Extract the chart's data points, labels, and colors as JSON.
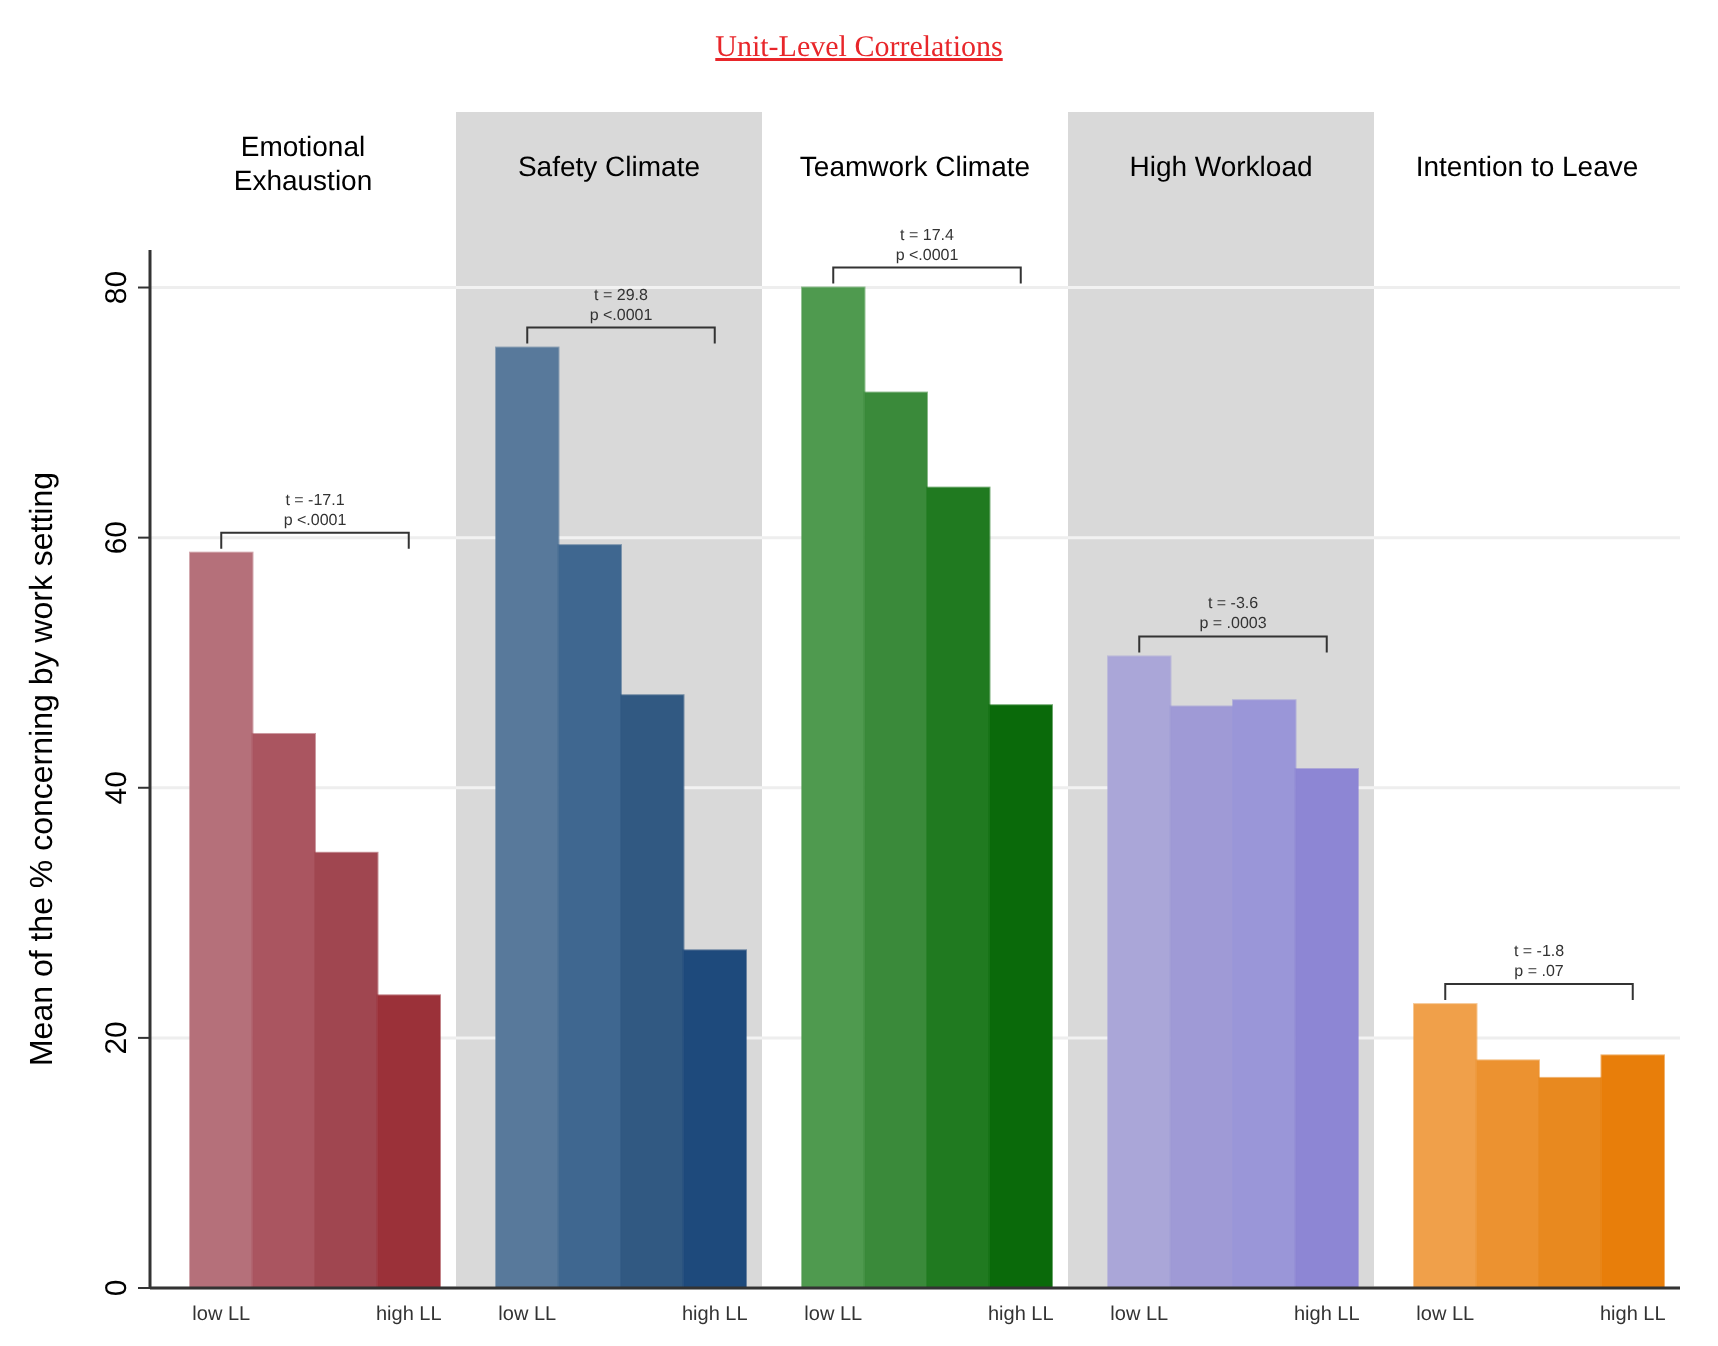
{
  "chart_data": [
    {
      "type": "bar",
      "title": "Emotional Exhaustion",
      "ylabel": "Mean of the % concerning by work setting",
      "categories": [
        "low LL",
        null,
        null,
        "high LL"
      ],
      "values": [
        58.8,
        44.3,
        34.8,
        23.4
      ],
      "colors": [
        "#b5707a",
        "#aa5560",
        "#a04650",
        "#9b3139"
      ],
      "ylim": [
        0,
        83
      ],
      "yticks": [
        0,
        20,
        40,
        60,
        80
      ],
      "grid": "y",
      "annotations": [
        "t = -17.1",
        "p <.0001",
        "Unit-Level Correlations"
      ]
    },
    {
      "type": "bar",
      "title": "Safety Climate",
      "categories": [
        "low LL",
        null,
        null,
        "high LL"
      ],
      "values": [
        75.2,
        59.4,
        47.4,
        27
      ],
      "colors": [
        "#58799b",
        "#3f6790",
        "#315982",
        "#1e4a7c"
      ],
      "ylim": [
        0,
        83
      ],
      "yticks": [
        0,
        20,
        40,
        60,
        80
      ],
      "grid": "y",
      "tick_labels": "x",
      "annotations": [
        "t = 29.8",
        "p <.0001"
      ]
    },
    {
      "type": "bar",
      "title": "Teamwork Climate",
      "categories": [
        "low LL",
        null,
        null,
        "high LL"
      ],
      "values": [
        80,
        71.6,
        64,
        46.6
      ],
      "colors": [
        "#4f9a4f",
        "#3a8a3a",
        "#207a20",
        "#0a6a0a"
      ],
      "ylim": [
        0,
        83
      ],
      "yticks": [
        0,
        20,
        40,
        60,
        80
      ],
      "grid": "y",
      "tick_labels": "x",
      "annotations": [
        "t = 17.4",
        "p <.0001"
      ]
    },
    {
      "type": "bar",
      "title": "High Workload",
      "categories": [
        "low LL",
        null,
        null,
        "high LL"
      ],
      "values": [
        50.5,
        46.5,
        47,
        41.5
      ],
      "colors": [
        "#aaa6d8",
        "#9f9ad6",
        "#9a96d8",
        "#8d86d4"
      ],
      "ylim": [
        0,
        83
      ],
      "yticks": [
        0,
        20,
        40,
        60,
        80
      ],
      "grid": "y",
      "tick_labels": "x",
      "annotations": [
        "t = -3.6",
        "p = .0003"
      ]
    },
    {
      "type": "bar",
      "title": "Intention to Leave",
      "categories": [
        "low LL",
        null,
        null,
        "high LL"
      ],
      "values": [
        22.7,
        18.2,
        16.8,
        18.6
      ],
      "colors": [
        "#f0a04a",
        "#ec9230",
        "#e8891f",
        "#e87e0a"
      ],
      "ylim": [
        0,
        83
      ],
      "yticks": [
        0,
        20,
        40,
        60,
        80
      ],
      "grid": "y",
      "tick_labels": "x",
      "annotations": [
        "t = -1.8",
        "p = .07"
      ]
    }
  ]
}
